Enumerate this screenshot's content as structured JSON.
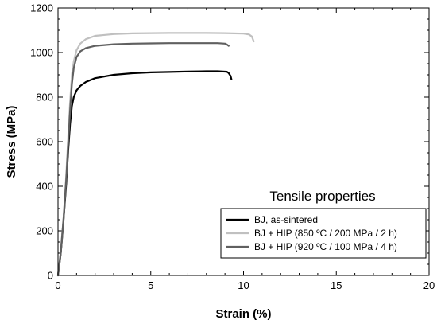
{
  "chart_data": {
    "type": "line",
    "title": "",
    "xlabel": "Strain (%)",
    "ylabel": "Stress (MPa)",
    "xlim": [
      0,
      20
    ],
    "ylim": [
      0,
      1200
    ],
    "xticks": [
      0,
      5,
      10,
      15,
      20
    ],
    "yticks": [
      0,
      200,
      400,
      600,
      800,
      1000,
      1200
    ],
    "grid": false,
    "legend": {
      "title": "Tensile properties",
      "placement": "bottom-right"
    },
    "series": [
      {
        "name": "BJ, as-sintered",
        "color": "#000000",
        "x": [
          0,
          0.15,
          0.3,
          0.45,
          0.55,
          0.65,
          0.75,
          0.85,
          1.0,
          1.2,
          1.5,
          2.0,
          3.0,
          4.0,
          5.0,
          6.0,
          7.0,
          8.0,
          8.6,
          9.1,
          9.2,
          9.3,
          9.35
        ],
        "y": [
          0,
          100,
          250,
          420,
          560,
          680,
          760,
          800,
          830,
          850,
          868,
          885,
          900,
          907,
          911,
          913,
          915,
          916,
          916,
          914,
          908,
          895,
          880
        ]
      },
      {
        "name": "BJ + HIP (850 ºC / 200 MPa / 2 h)",
        "color": "#c0c0c0",
        "x": [
          0,
          0.15,
          0.3,
          0.45,
          0.55,
          0.65,
          0.75,
          0.85,
          1.0,
          1.2,
          1.5,
          2.0,
          3.0,
          4.0,
          5.0,
          6.0,
          7.0,
          8.0,
          9.0,
          10.0,
          10.3,
          10.45,
          10.55
        ],
        "y": [
          0,
          110,
          260,
          460,
          620,
          780,
          900,
          960,
          1010,
          1040,
          1060,
          1075,
          1083,
          1086,
          1087,
          1088,
          1088,
          1088,
          1087,
          1085,
          1081,
          1072,
          1050
        ]
      },
      {
        "name": "BJ + HIP (920 ºC / 100 MPa / 4 h)",
        "color": "#606060",
        "x": [
          0,
          0.15,
          0.3,
          0.45,
          0.55,
          0.65,
          0.75,
          0.85,
          1.0,
          1.2,
          1.5,
          2.0,
          3.0,
          4.0,
          5.0,
          6.0,
          7.0,
          8.0,
          8.6,
          9.0,
          9.1,
          9.2
        ],
        "y": [
          0,
          105,
          255,
          440,
          590,
          740,
          860,
          930,
          980,
          1005,
          1020,
          1030,
          1037,
          1040,
          1041,
          1042,
          1042,
          1042,
          1042,
          1040,
          1036,
          1030
        ]
      }
    ]
  }
}
